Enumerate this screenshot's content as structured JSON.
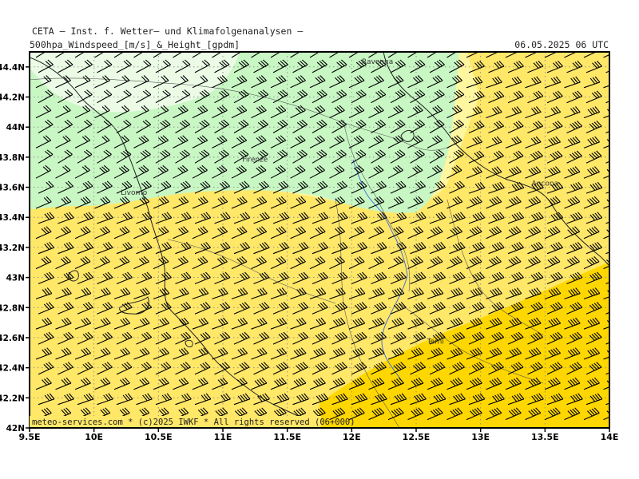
{
  "header": {
    "title": "CETA — Inst. f. Wetter— und Klimafolgenanalysen —",
    "subtitle": "500hpa_Windspeed_[m/s]_&_Height_[gpdm]",
    "date": "06.05.2025 06 UTC"
  },
  "footer": {
    "copyright": "meteo-services.com * (c)2025 IWKF * All rights reserved (06+000)"
  },
  "axes": {
    "lon_labels": [
      "9.5E",
      "10E",
      "10.5E",
      "11E",
      "11.5E",
      "12E",
      "12.5E",
      "13E",
      "13.5E",
      "14E"
    ],
    "lat_labels": [
      "44.4N",
      "44.2N",
      "44N",
      "43.8N",
      "43.6N",
      "43.4N",
      "43.2N",
      "43N",
      "42.8N",
      "42.6N",
      "42.4N",
      "42.2N",
      "42N"
    ]
  },
  "cities": [
    {
      "name": "Ravenna",
      "lon": 12.2,
      "lat": 44.42
    },
    {
      "name": "Firenze",
      "lon": 11.25,
      "lat": 43.77
    },
    {
      "name": "Livorno",
      "lon": 10.31,
      "lat": 43.55
    },
    {
      "name": "Ancona",
      "lon": 13.5,
      "lat": 43.61
    },
    {
      "name": "Terni",
      "lon": 12.65,
      "lat": 42.56
    }
  ],
  "colors": {
    "very_light_green": "#ebfbe6",
    "light_green": "#c8f7c4",
    "pale_yellow": "#fff6a0",
    "yellow": "#ffe768",
    "gold": "#ffd700",
    "barb": "#000000",
    "coast": "#222222",
    "river": "#3366dd",
    "grid": "#8a8a8a",
    "frame": "#000000"
  },
  "chart_data": {
    "type": "map",
    "title": "500hpa_Windspeed_[m/s]_&_Height_[gpdm]",
    "lon_range": [
      9.5,
      14.0
    ],
    "lat_range": [
      42.0,
      44.5
    ],
    "grid": true,
    "wind_field": "westerly wind barbs, speed increasing toward the southeast"
  }
}
